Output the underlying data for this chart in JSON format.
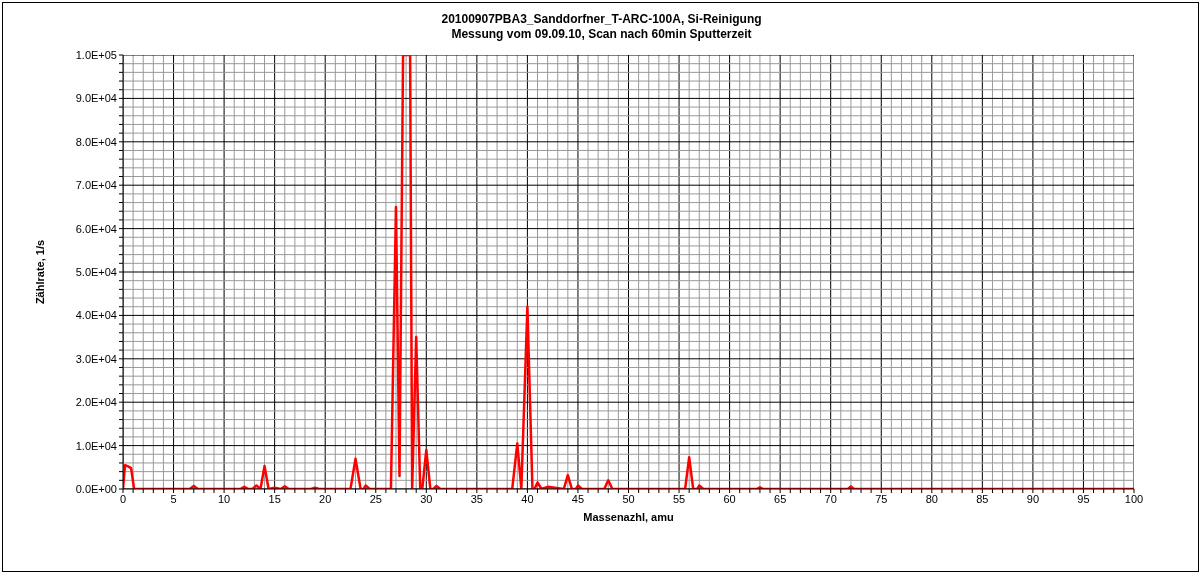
{
  "chart_data": {
    "type": "line",
    "title": "20100907PBA3_Sanddorfner_T-ARC-100A, Si-Reinigung",
    "subtitle": "Messung vom 09.09.10, Scan nach 60min Sputterzeit",
    "xlabel": "Massenazhl, amu",
    "ylabel": "Zählrate, 1/s",
    "grid": true,
    "marker": "none",
    "line_style": "solid",
    "xlim": [
      0,
      100
    ],
    "ylim": [
      0,
      100000
    ],
    "xticks": [
      0,
      {
        "value": 1,
        "label": null
      },
      {
        "value": 2,
        "label": null
      },
      {
        "value": 3,
        "label": null
      },
      {
        "value": 4,
        "label": null
      },
      5,
      {
        "value": 6,
        "label": null
      },
      {
        "value": 7,
        "label": null
      },
      {
        "value": 8,
        "label": null
      },
      {
        "value": 9,
        "label": null
      },
      10,
      {
        "value": 11,
        "label": null
      },
      {
        "value": 12,
        "label": null
      },
      {
        "value": 13,
        "label": null
      },
      {
        "value": 14,
        "label": null
      },
      15,
      {
        "value": 16,
        "label": null
      },
      {
        "value": 17,
        "label": null
      },
      {
        "value": 18,
        "label": null
      },
      {
        "value": 19,
        "label": null
      },
      20,
      {
        "value": 21,
        "label": null
      },
      {
        "value": 22,
        "label": null
      },
      {
        "value": 23,
        "label": null
      },
      {
        "value": 24,
        "label": null
      },
      25,
      {
        "value": 26,
        "label": null
      },
      {
        "value": 27,
        "label": null
      },
      {
        "value": 28,
        "label": null
      },
      {
        "value": 29,
        "label": null
      },
      30,
      {
        "value": 31,
        "label": null
      },
      {
        "value": 32,
        "label": null
      },
      {
        "value": 33,
        "label": null
      },
      {
        "value": 34,
        "label": null
      },
      35,
      {
        "value": 36,
        "label": null
      },
      {
        "value": 37,
        "label": null
      },
      {
        "value": 38,
        "label": null
      },
      {
        "value": 39,
        "label": null
      },
      40,
      {
        "value": 41,
        "label": null
      },
      {
        "value": 42,
        "label": null
      },
      {
        "value": 43,
        "label": null
      },
      {
        "value": 44,
        "label": null
      },
      45,
      {
        "value": 46,
        "label": null
      },
      {
        "value": 47,
        "label": null
      },
      {
        "value": 48,
        "label": null
      },
      {
        "value": 49,
        "label": null
      },
      50,
      {
        "value": 51,
        "label": null
      },
      {
        "value": 52,
        "label": null
      },
      {
        "value": 53,
        "label": null
      },
      {
        "value": 54,
        "label": null
      },
      55,
      {
        "value": 56,
        "label": null
      },
      {
        "value": 57,
        "label": null
      },
      {
        "value": 58,
        "label": null
      },
      {
        "value": 59,
        "label": null
      },
      60,
      {
        "value": 61,
        "label": null
      },
      {
        "value": 62,
        "label": null
      },
      {
        "value": 63,
        "label": null
      },
      {
        "value": 64,
        "label": null
      },
      65,
      {
        "value": 66,
        "label": null
      },
      {
        "value": 67,
        "label": null
      },
      {
        "value": 68,
        "label": null
      },
      {
        "value": 69,
        "label": null
      },
      70,
      {
        "value": 71,
        "label": null
      },
      {
        "value": 72,
        "label": null
      },
      {
        "value": 73,
        "label": null
      },
      {
        "value": 74,
        "label": null
      },
      75,
      {
        "value": 76,
        "label": null
      },
      {
        "value": 77,
        "label": null
      },
      {
        "value": 78,
        "label": null
      },
      {
        "value": 79,
        "label": null
      },
      80,
      {
        "value": 81,
        "label": null
      },
      {
        "value": 82,
        "label": null
      },
      {
        "value": 83,
        "label": null
      },
      {
        "value": 84,
        "label": null
      },
      85,
      {
        "value": 86,
        "label": null
      },
      {
        "value": 87,
        "label": null
      },
      {
        "value": 88,
        "label": null
      },
      {
        "value": 89,
        "label": null
      },
      90,
      {
        "value": 91,
        "label": null
      },
      {
        "value": 92,
        "label": null
      },
      {
        "value": 93,
        "label": null
      },
      {
        "value": 94,
        "label": null
      },
      95,
      {
        "value": 96,
        "label": null
      },
      {
        "value": 97,
        "label": null
      },
      {
        "value": 98,
        "label": null
      },
      {
        "value": 99,
        "label": null
      },
      100
    ],
    "yticks": [
      {
        "value": 0,
        "label": "0.0E+00"
      },
      {
        "value": 2000,
        "label": null
      },
      {
        "value": 4000,
        "label": null
      },
      {
        "value": 6000,
        "label": null
      },
      {
        "value": 8000,
        "label": null
      },
      {
        "value": 10000,
        "label": "1.0E+04"
      },
      {
        "value": 12000,
        "label": null
      },
      {
        "value": 14000,
        "label": null
      },
      {
        "value": 16000,
        "label": null
      },
      {
        "value": 18000,
        "label": null
      },
      {
        "value": 20000,
        "label": "2.0E+04"
      },
      {
        "value": 22000,
        "label": null
      },
      {
        "value": 24000,
        "label": null
      },
      {
        "value": 26000,
        "label": null
      },
      {
        "value": 28000,
        "label": null
      },
      {
        "value": 30000,
        "label": "3.0E+04"
      },
      {
        "value": 32000,
        "label": null
      },
      {
        "value": 34000,
        "label": null
      },
      {
        "value": 36000,
        "label": null
      },
      {
        "value": 38000,
        "label": null
      },
      {
        "value": 40000,
        "label": "4.0E+04"
      },
      {
        "value": 42000,
        "label": null
      },
      {
        "value": 44000,
        "label": null
      },
      {
        "value": 46000,
        "label": null
      },
      {
        "value": 48000,
        "label": null
      },
      {
        "value": 50000,
        "label": "5.0E+04"
      },
      {
        "value": 52000,
        "label": null
      },
      {
        "value": 54000,
        "label": null
      },
      {
        "value": 56000,
        "label": null
      },
      {
        "value": 58000,
        "label": null
      },
      {
        "value": 60000,
        "label": "6.0E+04"
      },
      {
        "value": 62000,
        "label": null
      },
      {
        "value": 64000,
        "label": null
      },
      {
        "value": 66000,
        "label": null
      },
      {
        "value": 68000,
        "label": null
      },
      {
        "value": 70000,
        "label": "7.0E+04"
      },
      {
        "value": 72000,
        "label": null
      },
      {
        "value": 74000,
        "label": null
      },
      {
        "value": 76000,
        "label": null
      },
      {
        "value": 78000,
        "label": null
      },
      {
        "value": 80000,
        "label": "8.0E+04"
      },
      {
        "value": 82000,
        "label": null
      },
      {
        "value": 84000,
        "label": null
      },
      {
        "value": 86000,
        "label": null
      },
      {
        "value": 88000,
        "label": null
      },
      {
        "value": 90000,
        "label": "9.0E+04"
      },
      {
        "value": 92000,
        "label": null
      },
      {
        "value": 94000,
        "label": null
      },
      {
        "value": 96000,
        "label": null
      },
      {
        "value": 98000,
        "label": null
      },
      {
        "value": 100000,
        "label": "1.0E+05"
      }
    ],
    "series": [
      {
        "color": "#ff0000",
        "x": [
          0,
          0.2,
          0.5,
          0.8,
          1.1,
          1.5,
          6.6,
          7,
          7.4,
          11.6,
          12,
          12.4,
          12.8,
          13.2,
          13.6,
          14,
          14.4,
          15,
          15.6,
          16,
          16.4,
          18.6,
          19,
          19.4,
          22.5,
          23,
          23.5,
          23.8,
          24,
          24.4,
          26.5,
          27,
          27.35,
          27.7,
          27.8,
          28.2,
          28.4,
          28.6,
          29,
          29.4,
          29.6,
          30,
          30.4,
          30.7,
          31,
          31.4,
          38.5,
          39,
          39.4,
          40,
          40.5,
          40.7,
          41,
          41.4,
          42,
          43.6,
          44,
          44.4,
          44.8,
          45,
          45.4,
          47.6,
          48,
          48.4,
          55.6,
          56,
          56.4,
          56.8,
          57,
          57.4,
          62.7,
          63,
          63.3,
          71.7,
          72,
          72.3,
          100
        ],
        "values": [
          0,
          5500,
          5200,
          4800,
          0,
          0,
          0,
          700,
          0,
          0,
          500,
          0,
          0,
          800,
          0,
          5300,
          0,
          300,
          0,
          600,
          0,
          0,
          300,
          0,
          0,
          7000,
          0,
          0,
          800,
          0,
          0,
          65000,
          3000,
          100000,
          100000,
          100000,
          100000,
          0,
          35000,
          0,
          0,
          9000,
          0,
          0,
          700,
          0,
          0,
          10500,
          0,
          42000,
          0,
          0,
          1500,
          0,
          500,
          0,
          3200,
          0,
          0,
          800,
          0,
          0,
          2000,
          0,
          0,
          7300,
          0,
          0,
          800,
          0,
          0,
          400,
          0,
          0,
          600,
          0,
          0
        ]
      }
    ]
  }
}
